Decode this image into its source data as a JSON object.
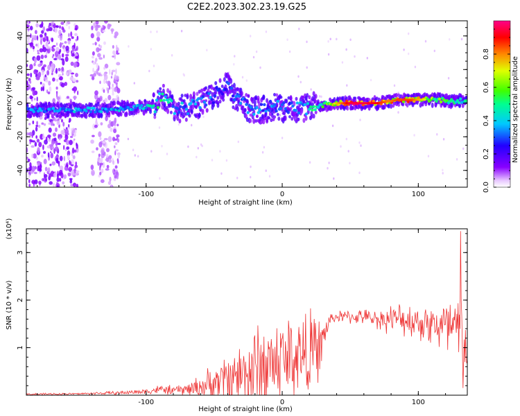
{
  "figure": {
    "title": "C2E2.2023.302.23.19.G25"
  },
  "chart_data": [
    {
      "type": "heatmap",
      "title": "C2E2.2023.302.23.19.G25",
      "xlabel": "Height of straight line (km)",
      "ylabel": "Frequency (Hz)",
      "xlim": [
        -188,
        136
      ],
      "ylim": [
        -50,
        49
      ],
      "x_ticks": [
        -100,
        0,
        100
      ],
      "y_ticks": [
        -40,
        -20,
        0,
        20,
        40
      ],
      "x_tick_labels": [
        "-100",
        "0",
        "100"
      ],
      "y_tick_labels": [
        "-40",
        "-20",
        "0",
        "20",
        "40"
      ],
      "colorbar": {
        "label": "Normalized spectral amplitude",
        "range": [
          0,
          1
        ],
        "ticks": [
          0.0,
          0.2,
          0.4,
          0.6,
          0.8
        ],
        "tick_labels": [
          "0.0",
          "0.2",
          "0.4",
          "0.6",
          "0.8"
        ],
        "colormap": "rainbow (white-violet-blue-cyan-green-yellow-red-magenta)"
      },
      "ridge": {
        "description_values": "dominant frequency (Hz) vs height (km), amplitude 0-1",
        "x": [
          -188,
          -170,
          -150,
          -130,
          -115,
          -100,
          -92,
          -88,
          -80,
          -70,
          -60,
          -50,
          -45,
          -40,
          -35,
          -25,
          -15,
          -5,
          5,
          15,
          22,
          30,
          40,
          50,
          60,
          70,
          78,
          85,
          95,
          105,
          115,
          125,
          136
        ],
        "freq": [
          -4,
          -4,
          -4,
          -4,
          -3,
          -2,
          -1,
          5,
          -3,
          -3,
          0,
          4,
          8,
          10,
          3,
          -3,
          -4,
          -2,
          -4,
          -3,
          -2,
          -1,
          0,
          0,
          0,
          0,
          1,
          2,
          2,
          2,
          2,
          1,
          2
        ],
        "amplitude": [
          0.35,
          0.35,
          0.4,
          0.38,
          0.4,
          0.45,
          0.5,
          0.55,
          0.4,
          0.38,
          0.4,
          0.35,
          0.3,
          0.3,
          0.35,
          0.35,
          0.35,
          0.35,
          0.35,
          0.4,
          0.5,
          0.55,
          0.75,
          0.95,
          0.95,
          0.9,
          0.8,
          0.85,
          0.85,
          0.7,
          0.6,
          0.5,
          0.5
        ]
      },
      "noise_bands_x": [
        [
          -188,
          -150
        ],
        [
          -140,
          -120
        ]
      ]
    },
    {
      "type": "line",
      "xlabel": "Height of straight line (km)",
      "ylabel": "SNR (10 * v/v)",
      "y_multiplier": "(x10⁴)",
      "xlim": [
        -188,
        136
      ],
      "ylim": [
        0,
        3.5
      ],
      "x_ticks": [
        -100,
        0,
        100
      ],
      "y_ticks": [
        1,
        2,
        3
      ],
      "x_tick_labels": [
        "-100",
        "0",
        "100"
      ],
      "y_tick_labels": [
        "1",
        "2",
        "3"
      ],
      "color": "#ee3333",
      "series": [
        {
          "x": [
            -188,
            -150,
            -120,
            -100,
            -90,
            -80,
            -70,
            -60,
            -50,
            -40,
            -30,
            -20,
            -10,
            0,
            10,
            20,
            28,
            35,
            40,
            50,
            60,
            70,
            80,
            90,
            100,
            110,
            120,
            128,
            132,
            136
          ],
          "baseline": [
            0.02,
            0.03,
            0.05,
            0.08,
            0.12,
            0.1,
            0.12,
            0.18,
            0.25,
            0.35,
            0.45,
            0.55,
            0.65,
            0.75,
            0.85,
            0.9,
            1.0,
            1.6,
            1.65,
            1.65,
            1.65,
            1.6,
            1.6,
            1.6,
            1.55,
            1.5,
            1.4,
            1.3,
            1.2,
            0.9
          ],
          "spread": [
            0.02,
            0.02,
            0.04,
            0.06,
            0.1,
            0.1,
            0.15,
            0.25,
            0.4,
            0.6,
            0.8,
            1.0,
            1.0,
            1.0,
            1.0,
            0.9,
            0.6,
            0.12,
            0.12,
            0.15,
            0.15,
            0.2,
            0.3,
            0.35,
            0.4,
            0.45,
            0.7,
            1.0,
            1.2,
            0.6
          ],
          "peak_value": 3.45,
          "peak_x": 131
        }
      ]
    }
  ]
}
